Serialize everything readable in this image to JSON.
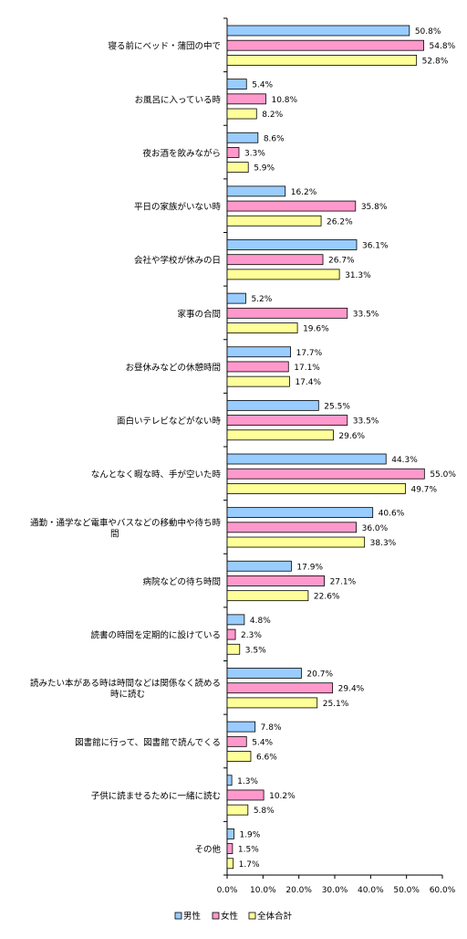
{
  "chart_data": {
    "type": "bar",
    "orientation": "horizontal",
    "categories": [
      [
        "寝る前にベッド・蒲団の中で"
      ],
      [
        "お風呂に入っている時"
      ],
      [
        "夜お酒を飲みながら"
      ],
      [
        "平日の家族がいない時"
      ],
      [
        "会社や学校が休みの日"
      ],
      [
        "家事の合間"
      ],
      [
        "お昼休みなどの休憩時間"
      ],
      [
        "面白いテレビなどがない時"
      ],
      [
        "なんとなく暇な時、手が空いた時"
      ],
      [
        "通勤・通学など電車やバスなどの移動中や待ち時",
        "間"
      ],
      [
        "病院などの待ち時間"
      ],
      [
        "読書の時間を定期的に設けている"
      ],
      [
        "読みたい本がある時は時間などは関係なく読める",
        "時に読む"
      ],
      [
        "図書館に行って、図書館で読んでくる"
      ],
      [
        "子供に読ませるために一緒に読む"
      ],
      [
        "その他"
      ]
    ],
    "series": [
      {
        "name": "男性",
        "color": "#99ccff",
        "values": [
          50.8,
          5.4,
          8.6,
          16.2,
          36.1,
          5.2,
          17.7,
          25.5,
          44.3,
          40.6,
          17.9,
          4.8,
          20.7,
          7.8,
          1.3,
          1.9
        ]
      },
      {
        "name": "女性",
        "color": "#ff99cc",
        "values": [
          54.8,
          10.8,
          3.3,
          35.8,
          26.7,
          33.5,
          17.1,
          33.5,
          55.0,
          36.0,
          27.1,
          2.3,
          29.4,
          5.4,
          10.2,
          1.5
        ]
      },
      {
        "name": "全体合計",
        "color": "#ffff99",
        "values": [
          52.8,
          8.2,
          5.9,
          26.2,
          31.3,
          19.6,
          17.4,
          29.6,
          49.7,
          38.3,
          22.6,
          3.5,
          25.1,
          6.6,
          5.8,
          1.7
        ]
      }
    ],
    "value_labels": [
      [
        "50.8%",
        "54.8%",
        "52.8%"
      ],
      [
        "5.4%",
        "10.8%",
        "8.2%"
      ],
      [
        "8.6%",
        "3.3%",
        "5.9%"
      ],
      [
        "16.2%",
        "35.8%",
        "26.2%"
      ],
      [
        "36.1%",
        "26.7%",
        "31.3%"
      ],
      [
        "5.2%",
        "33.5%",
        "19.6%"
      ],
      [
        "17.7%",
        "17.1%",
        "17.4%"
      ],
      [
        "25.5%",
        "33.5%",
        "29.6%"
      ],
      [
        "44.3%",
        "55.0%",
        "49.7%"
      ],
      [
        "40.6%",
        "36.0%",
        "38.3%"
      ],
      [
        "17.9%",
        "27.1%",
        "22.6%"
      ],
      [
        "4.8%",
        "2.3%",
        "3.5%"
      ],
      [
        "20.7%",
        "29.4%",
        "25.1%"
      ],
      [
        "7.8%",
        "5.4%",
        "6.6%"
      ],
      [
        "1.3%",
        "10.2%",
        "5.8%"
      ],
      [
        "1.9%",
        "1.5%",
        "1.7%"
      ]
    ],
    "x_ticks": [
      0,
      10,
      20,
      30,
      40,
      50,
      60
    ],
    "x_tick_labels": [
      "0.0%",
      "10.0%",
      "20.0%",
      "30.0%",
      "40.0%",
      "50.0%",
      "60.0%"
    ],
    "xlim": [
      0,
      60
    ],
    "grid": false,
    "legend_position": "bottom",
    "value_unit": "%"
  }
}
